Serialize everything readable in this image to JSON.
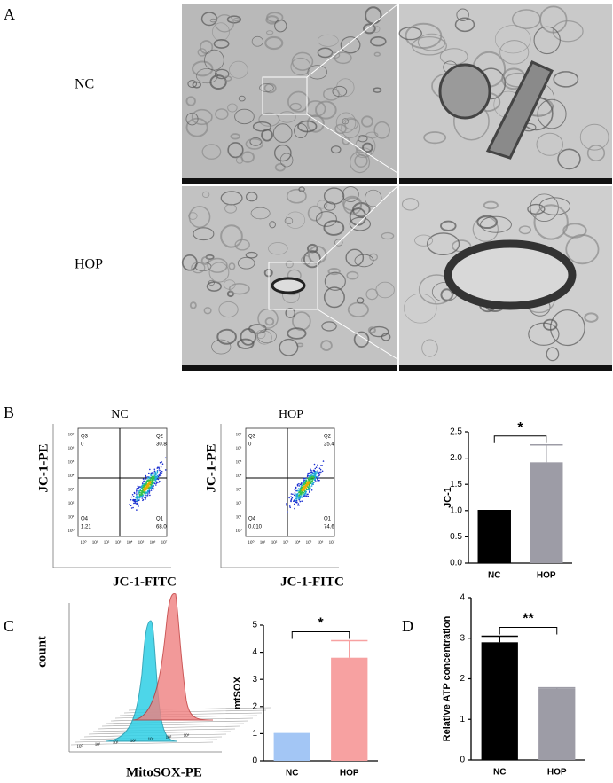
{
  "panel_labels": {
    "a": "A",
    "b": "B",
    "c": "C",
    "d": "D"
  },
  "micrographs": {
    "rows": [
      "NC",
      "HOP"
    ]
  },
  "flow_plots": [
    {
      "title": "NC",
      "y_label": "JC-1-PE",
      "x_label": "JC-1-FITC",
      "quadrants": [
        {
          "name": "Q3",
          "value": "0"
        },
        {
          "name": "Q2",
          "value": "30.8"
        },
        {
          "name": "Q4",
          "value": "1.21"
        },
        {
          "name": "Q1",
          "value": "68.0"
        }
      ]
    },
    {
      "title": "HOP",
      "y_label": "JC-1-PE",
      "x_label": "JC-1-FITC",
      "quadrants": [
        {
          "name": "Q3",
          "value": "0"
        },
        {
          "name": "Q2",
          "value": "25.4"
        },
        {
          "name": "Q4",
          "value": "0.010"
        },
        {
          "name": "Q1",
          "value": "74.6"
        }
      ]
    }
  ],
  "flow_ticks": [
    "10⁰",
    "10¹",
    "10²",
    "10³",
    "10⁴",
    "10⁵",
    "10⁶",
    "10⁷"
  ],
  "histogram": {
    "y_label": "count",
    "x_label": "MitoSOX-PE",
    "ticks": [
      "10⁰",
      "10¹",
      "10²",
      "10³",
      "10⁴",
      "10⁵",
      "10⁶"
    ]
  },
  "chart_data": [
    {
      "type": "bar",
      "y_label": "JC-1",
      "categories": [
        "NC",
        "HOP"
      ],
      "values": [
        1.0,
        1.92
      ],
      "errors": [
        0,
        0.33
      ],
      "colors": [
        "#000000",
        "#9d9ca6"
      ],
      "significance": "*",
      "ylim": [
        0,
        2.5
      ],
      "yticks": [
        {
          "value": 0,
          "label": "0.0"
        },
        {
          "value": 0.5,
          "label": "0.5"
        },
        {
          "value": 1,
          "label": "1.0"
        },
        {
          "value": 1.5,
          "label": "1.5"
        },
        {
          "value": 2,
          "label": "2.0"
        },
        {
          "value": 2.5,
          "label": "2.5"
        }
      ]
    },
    {
      "type": "bar",
      "y_label": "mtSOX",
      "categories": [
        "NC",
        "HOP"
      ],
      "values": [
        1.0,
        3.8
      ],
      "errors": [
        0,
        0.63
      ],
      "colors": [
        "#a3c6f5",
        "#f7a1a1"
      ],
      "significance": "*",
      "ylim": [
        0,
        5
      ],
      "yticks": [
        0,
        1,
        2,
        3,
        4,
        5
      ]
    },
    {
      "type": "bar",
      "y_label": "Relative ATP concentration",
      "categories": [
        "NC",
        "HOP"
      ],
      "values": [
        2.9,
        1.76
      ],
      "errors": [
        0.15,
        0.02
      ],
      "colors": [
        "#000000",
        "#9d9ca6"
      ],
      "significance": "**",
      "ylim": [
        0,
        4
      ],
      "yticks": [
        0,
        1,
        2,
        3,
        4
      ]
    }
  ]
}
